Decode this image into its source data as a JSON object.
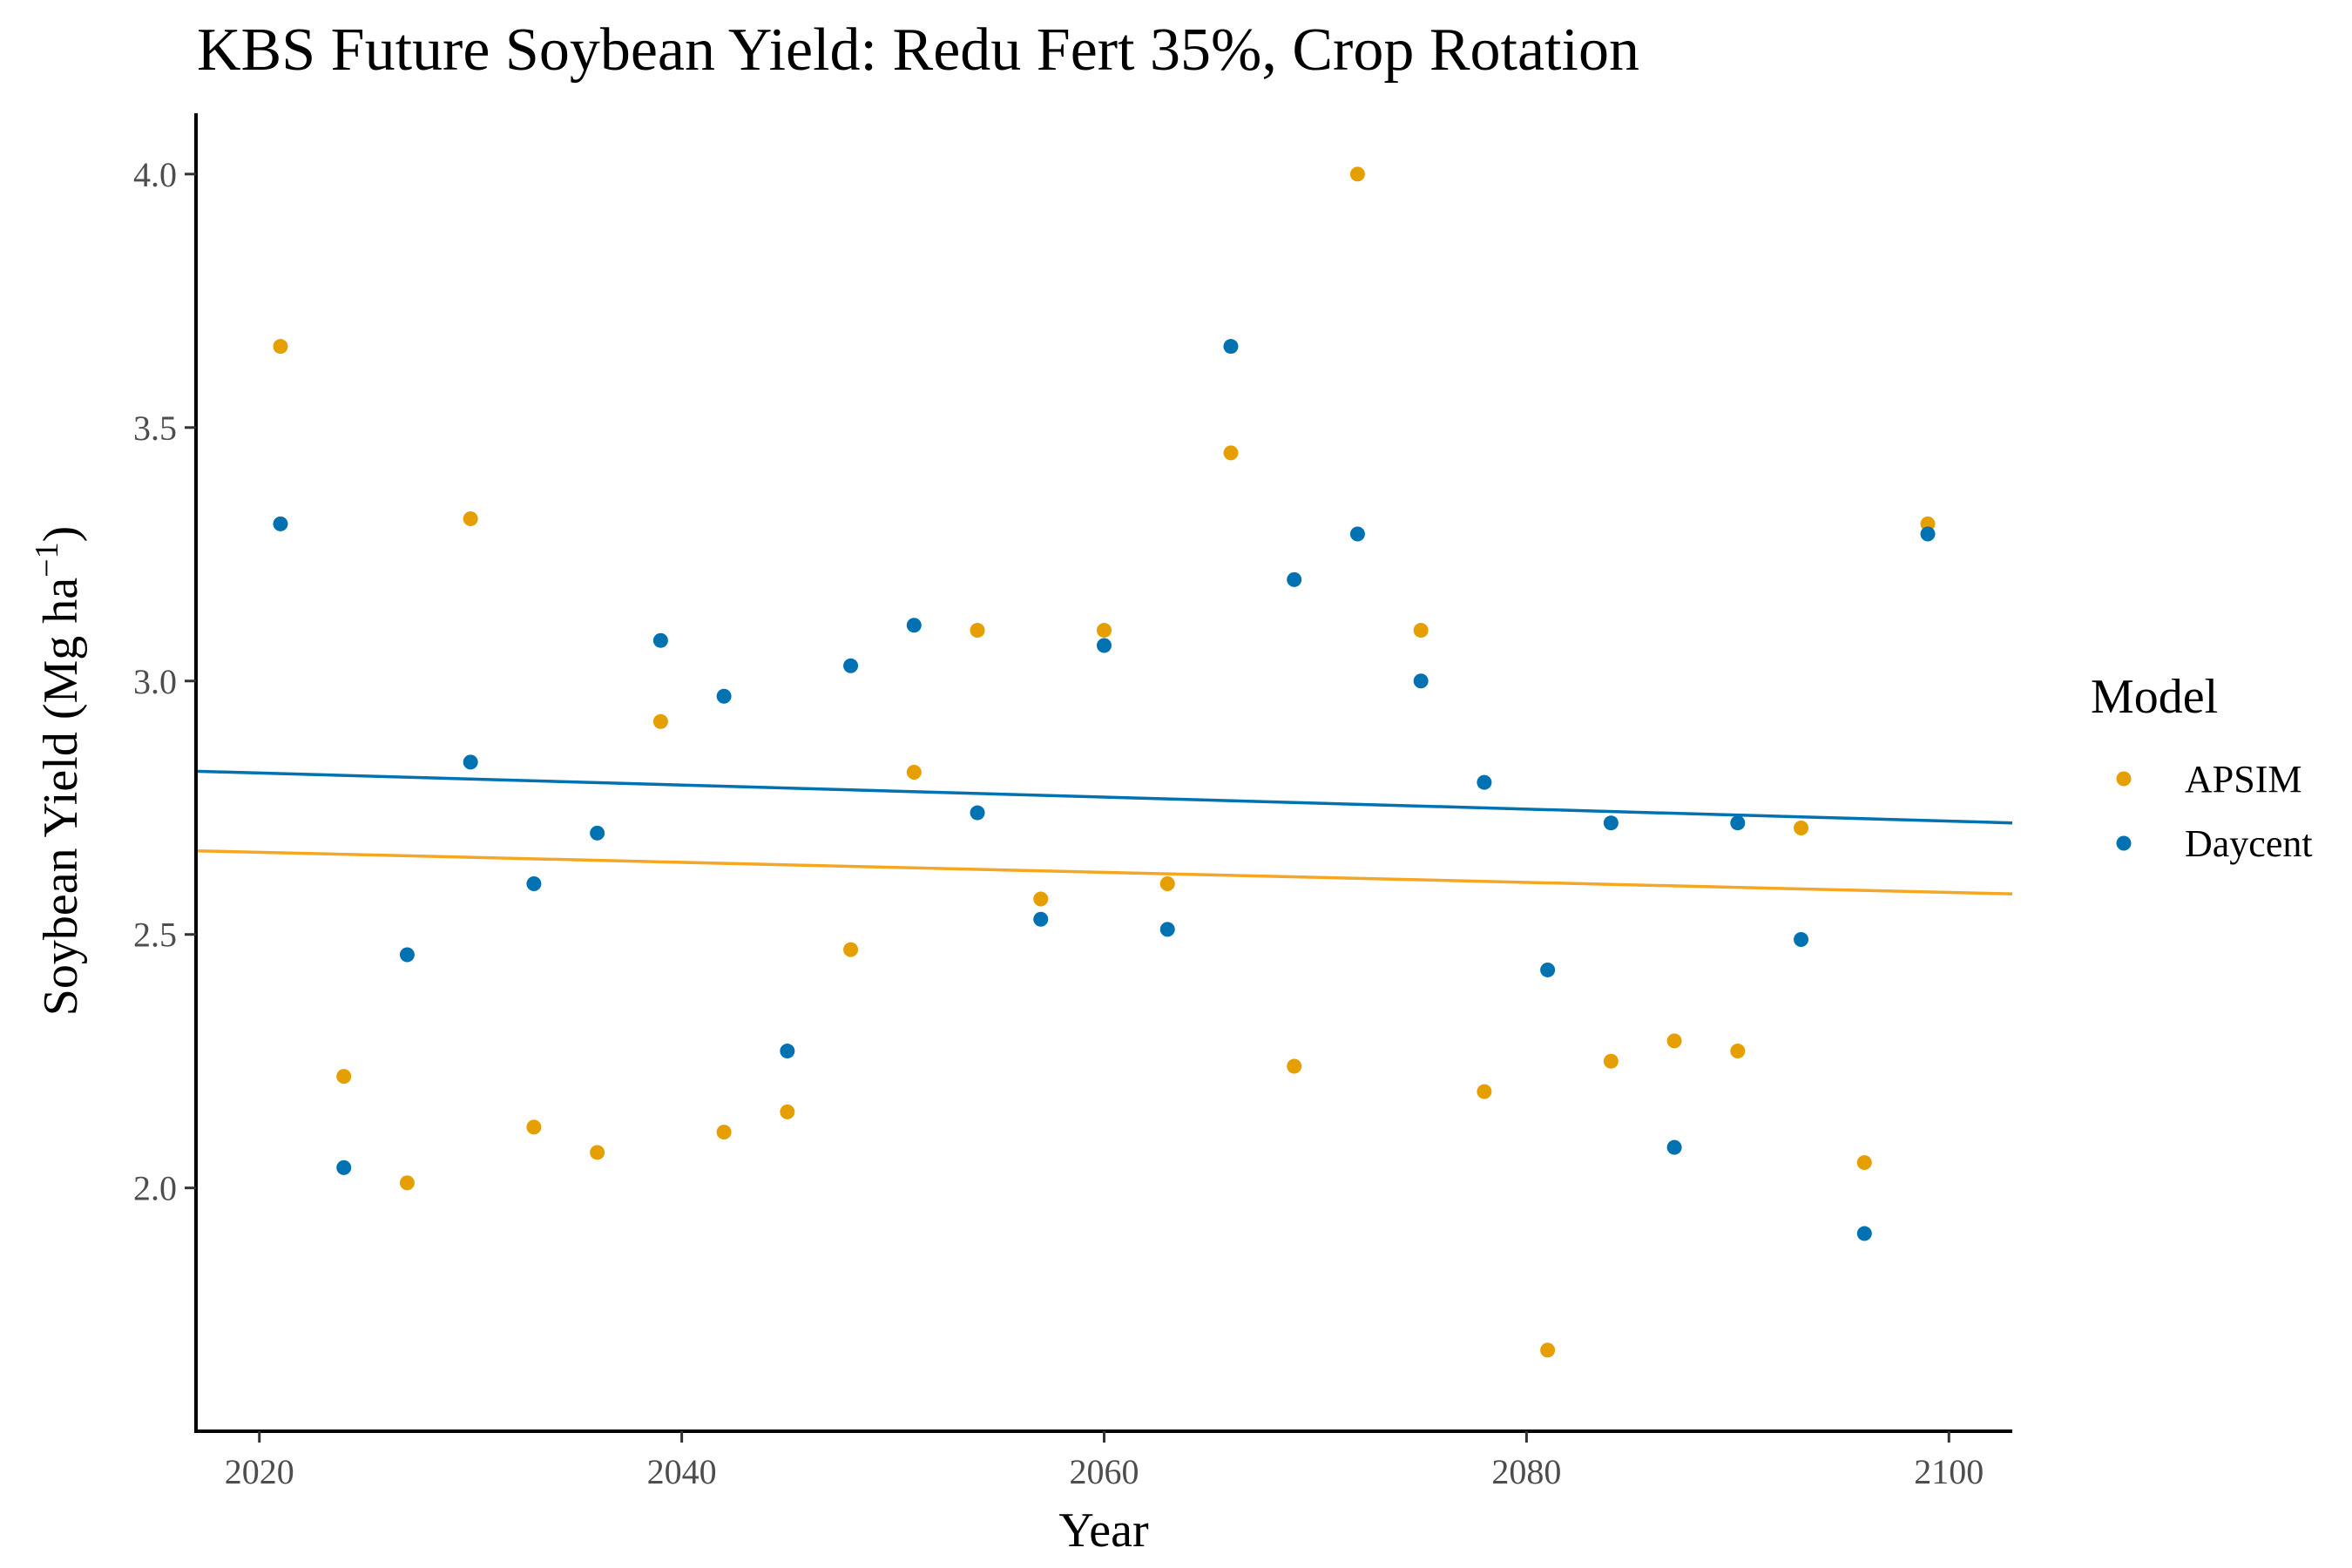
{
  "chart_data": {
    "type": "scatter",
    "title": "KBS Future Soybean Yield:  Redu Fert 35%, Crop Rotation",
    "xlabel": "Year",
    "ylabel": "Soybean Yield (Mg ha",
    "ylabel_sup": "−1",
    "ylabel_close": ")",
    "xlim": [
      2017,
      2103
    ],
    "ylim": [
      1.52,
      4.12
    ],
    "x_ticks": [
      2020,
      2040,
      2060,
      2080,
      2100
    ],
    "x_tick_labels": [
      "2020",
      "2040",
      "2060",
      "2080",
      "2100"
    ],
    "y_ticks": [
      2.0,
      2.5,
      3.0,
      3.5,
      4.0
    ],
    "y_tick_labels": [
      "2.0",
      "2.5",
      "3.0",
      "3.5",
      "4.0"
    ],
    "grid": false,
    "legend": {
      "title": "Model",
      "position": "right"
    },
    "series": [
      {
        "name": "APSIM",
        "color": "#E69F00",
        "line_color": "#F5A623",
        "x": [
          2021,
          2024,
          2027,
          2030,
          2033,
          2036,
          2039,
          2042,
          2045,
          2048,
          2051,
          2054,
          2057,
          2060,
          2063,
          2066,
          2069,
          2072,
          2075,
          2078,
          2081,
          2084,
          2087,
          2090,
          2093,
          2096,
          2099
        ],
        "y": [
          3.66,
          2.22,
          2.01,
          3.32,
          2.12,
          2.07,
          2.92,
          2.11,
          2.15,
          2.47,
          2.82,
          3.1,
          2.57,
          3.1,
          2.6,
          3.45,
          2.24,
          4.0,
          3.1,
          2.19,
          1.68,
          2.25,
          2.29,
          2.27,
          2.71,
          2.05,
          3.31
        ],
        "trend": {
          "x": [
            2017,
            2103
          ],
          "y": [
            2.665,
            2.58
          ]
        }
      },
      {
        "name": "Daycent",
        "color": "#0072B2",
        "line_color": "#0072B2",
        "x": [
          2021,
          2024,
          2027,
          2030,
          2033,
          2036,
          2039,
          2042,
          2045,
          2048,
          2051,
          2054,
          2057,
          2060,
          2063,
          2066,
          2069,
          2072,
          2075,
          2078,
          2081,
          2084,
          2087,
          2090,
          2093,
          2096,
          2099
        ],
        "y": [
          3.31,
          2.04,
          2.46,
          2.84,
          2.6,
          2.7,
          3.08,
          2.97,
          2.27,
          3.03,
          3.11,
          2.74,
          2.53,
          3.07,
          2.51,
          3.66,
          3.2,
          3.29,
          3.0,
          2.8,
          2.43,
          2.72,
          2.08,
          2.72,
          2.49,
          1.91,
          3.29
        ],
        "trend": {
          "x": [
            2017,
            2103
          ],
          "y": [
            2.822,
            2.72
          ]
        }
      }
    ]
  }
}
